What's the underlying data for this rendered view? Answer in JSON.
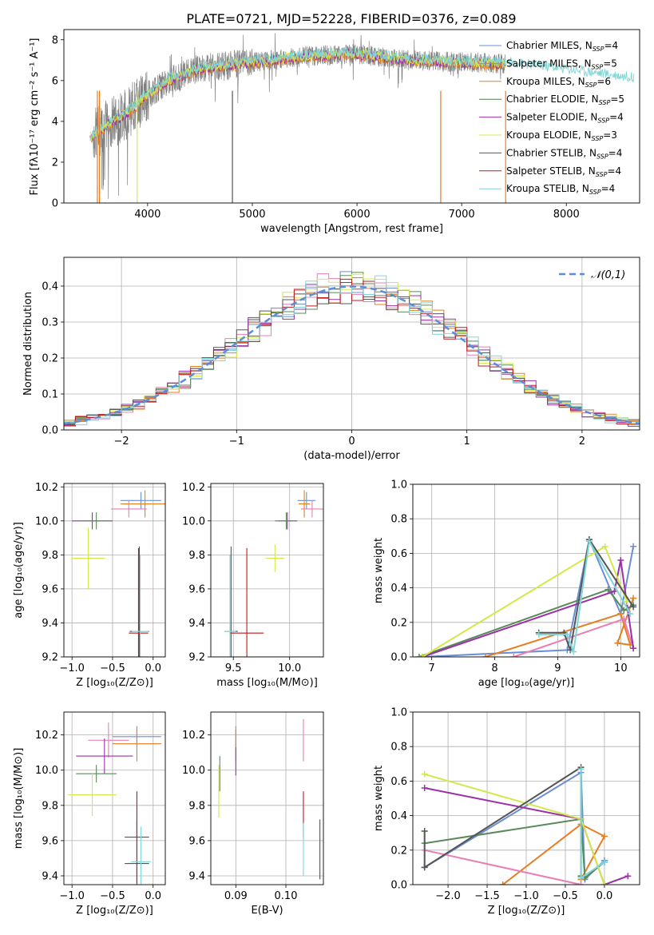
{
  "figure": {
    "title": "PLATE=0721, MJD=52228, FIBERID=0376, z=0.089"
  },
  "colors": [
    "#6a8fd8",
    "#e67e22",
    "#d97a1a",
    "#5a8a5a",
    "#9b30a8",
    "#d4e84a",
    "#555555",
    "#c0191c",
    "#7fd6d6",
    "#e87fb4"
  ],
  "legend_entries": [
    {
      "label": "Chabrier MILES, N",
      "sub": "SSP",
      "tail": "=4",
      "color": "#6a8fd8"
    },
    {
      "label": "Salpeter MILES, N",
      "sub": "SSP",
      "tail": "=5",
      "color": "#e67e22"
    },
    {
      "label": "Kroupa MILES, N",
      "sub": "SSP",
      "tail": "=6",
      "color": "#e87f2a"
    },
    {
      "label": "Chabrier ELODIE, N",
      "sub": "SSP",
      "tail": "=5",
      "color": "#4f7f4f"
    },
    {
      "label": "Salpeter ELODIE, N",
      "sub": "SSP",
      "tail": "=4",
      "color": "#9b30a8"
    },
    {
      "label": "Kroupa ELODIE, N",
      "sub": "SSP",
      "tail": "=3",
      "color": "#d4e84a"
    },
    {
      "label": "Chabrier STELIB, N",
      "sub": "SSP",
      "tail": "=4",
      "color": "#555555"
    },
    {
      "label": "Salpeter STELIB, N",
      "sub": "SSP",
      "tail": "=4",
      "color": "#c0191c"
    },
    {
      "label": "Kroupa STELIB, N",
      "sub": "SSP",
      "tail": "=4",
      "color": "#7fd6d6"
    }
  ],
  "chart_data": [
    {
      "id": "spectrum",
      "type": "line",
      "xlabel": "wavelength [Angstrom, rest frame]",
      "ylabel_pre": "Flux [f",
      "ylabel_text": "Flux [fλ10⁻¹⁷ erg cm⁻² s⁻¹ A⁻¹]",
      "xlim": [
        3200,
        8700
      ],
      "ylim": [
        0,
        8.5
      ],
      "xticks": [
        4000,
        5000,
        6000,
        7000,
        8000
      ],
      "yticks": [
        0,
        2,
        4,
        6,
        8
      ],
      "continuum": {
        "x": [
          3450,
          3600,
          3800,
          4000,
          4200,
          4500,
          5000,
          5500,
          6000,
          6500,
          7000,
          7500,
          8000,
          8600
        ],
        "y": [
          3.2,
          3.8,
          4.4,
          5.3,
          6.0,
          6.6,
          6.9,
          7.2,
          7.3,
          7.0,
          6.9,
          6.8,
          6.5,
          6.1
        ]
      }
    },
    {
      "id": "residual_hist",
      "type": "bar",
      "xlabel": "(data-model)/error",
      "ylabel": "Normed distribution",
      "xlim": [
        -2.5,
        2.5
      ],
      "ylim": [
        0,
        0.48
      ],
      "xticks": [
        -2,
        -1,
        0,
        1,
        2
      ],
      "yticks": [
        0.0,
        0.1,
        0.2,
        0.3,
        0.4
      ],
      "legend": "𝒩(0,1)",
      "bin_width": 0.1
    },
    {
      "id": "age_vs_Z",
      "type": "scatter",
      "xlabel": "Z [log₁₀(Z/Z⊙)]",
      "ylabel": "age  [log₁₀(age/yr)]",
      "xlim": [
        -1.1,
        0.15
      ],
      "ylim": [
        9.2,
        10.22
      ],
      "xticks": [
        -1.0,
        -0.5,
        0.0
      ],
      "yticks": [
        9.2,
        9.4,
        9.6,
        9.8,
        10.0,
        10.2
      ],
      "points": [
        {
          "x": -0.15,
          "y": 10.12,
          "xerr": 0.25,
          "yerr": 0.05,
          "c": 0
        },
        {
          "x": -0.1,
          "y": 10.1,
          "xerr": 0.3,
          "yerr": 0.08,
          "c": 1
        },
        {
          "x": -0.3,
          "y": 10.07,
          "xerr": 0.22,
          "yerr": 0.05,
          "c": 9
        },
        {
          "x": -0.75,
          "y": 10.0,
          "xerr": 0.25,
          "yerr": 0.05,
          "c": 4
        },
        {
          "x": -0.7,
          "y": 10.0,
          "xerr": 0.18,
          "yerr": 0.05,
          "c": 3
        },
        {
          "x": -0.8,
          "y": 9.78,
          "xerr": 0.2,
          "yerr": 0.18,
          "c": 5
        },
        {
          "x": -0.17,
          "y": 9.35,
          "xerr": 0.12,
          "yerr": 0.5,
          "c": 6
        },
        {
          "x": -0.18,
          "y": 9.34,
          "xerr": 0.12,
          "yerr": 0.5,
          "c": 7
        },
        {
          "x": -0.16,
          "y": 9.35,
          "xerr": 0.1,
          "yerr": 0.45,
          "c": 8
        }
      ]
    },
    {
      "id": "age_vs_mass",
      "type": "scatter",
      "xlabel": "mass [log₁₀(M/M⊙)]",
      "ylabel": "",
      "xlim": [
        9.3,
        10.3
      ],
      "ylim": [
        9.2,
        10.22
      ],
      "xticks": [
        9.5,
        10.0
      ],
      "yticks": [
        9.2,
        9.4,
        9.6,
        9.8,
        10.0,
        10.2
      ],
      "points": [
        {
          "x": 10.15,
          "y": 10.12,
          "xerr": 0.08,
          "yerr": 0.05,
          "c": 0
        },
        {
          "x": 10.13,
          "y": 10.1,
          "xerr": 0.05,
          "yerr": 0.08,
          "c": 1
        },
        {
          "x": 10.2,
          "y": 10.07,
          "xerr": 0.1,
          "yerr": 0.05,
          "c": 9
        },
        {
          "x": 9.98,
          "y": 10.0,
          "xerr": 0.08,
          "yerr": 0.05,
          "c": 4
        },
        {
          "x": 9.97,
          "y": 10.0,
          "xerr": 0.1,
          "yerr": 0.05,
          "c": 3
        },
        {
          "x": 9.87,
          "y": 9.78,
          "xerr": 0.08,
          "yerr": 0.08,
          "c": 5
        },
        {
          "x": 9.48,
          "y": 9.35,
          "xerr": 0.06,
          "yerr": 0.5,
          "c": 6
        },
        {
          "x": 9.62,
          "y": 9.34,
          "xerr": 0.15,
          "yerr": 0.5,
          "c": 7
        },
        {
          "x": 9.47,
          "y": 9.35,
          "xerr": 0.05,
          "yerr": 0.45,
          "c": 8
        }
      ]
    },
    {
      "id": "weight_vs_age",
      "type": "line",
      "xlabel": "age  [log₁₀(age/yr)]",
      "ylabel": "mass weight",
      "xlim": [
        6.7,
        10.3
      ],
      "ylim": [
        0,
        1.0
      ],
      "xticks": [
        7,
        8,
        9,
        10
      ],
      "yticks": [
        0.0,
        0.2,
        0.4,
        0.6,
        0.8,
        1.0
      ],
      "series": [
        {
          "c": 0,
          "x": [
            6.85,
            9.15,
            9.5,
            10.0,
            10.2
          ],
          "y": [
            0.0,
            0.04,
            0.68,
            0.25,
            0.64
          ]
        },
        {
          "c": 1,
          "x": [
            7.85,
            10.0,
            10.15,
            9.95,
            10.2
          ],
          "y": [
            0.0,
            0.25,
            0.07,
            0.08,
            0.34
          ]
        },
        {
          "c": 9,
          "x": [
            8.3,
            10.05,
            10.2
          ],
          "y": [
            0.0,
            0.22,
            0.05
          ]
        },
        {
          "c": 3,
          "x": [
            6.8,
            9.8,
            10.05,
            10.2
          ],
          "y": [
            0.0,
            0.39,
            0.27,
            0.3
          ]
        },
        {
          "c": 4,
          "x": [
            6.85,
            9.9,
            10.0,
            10.2
          ],
          "y": [
            0.0,
            0.38,
            0.56,
            0.05
          ]
        },
        {
          "c": 5,
          "x": [
            6.85,
            9.75,
            10.1
          ],
          "y": [
            0.0,
            0.64,
            0.32
          ]
        },
        {
          "c": 6,
          "x": [
            8.7,
            9.1,
            9.2,
            9.5,
            10.2
          ],
          "y": [
            0.14,
            0.14,
            0.04,
            0.68,
            0.29
          ]
        },
        {
          "c": 8,
          "x": [
            8.7,
            9.15,
            9.25,
            9.5,
            10.15
          ],
          "y": [
            0.13,
            0.13,
            0.03,
            0.67,
            0.25
          ]
        }
      ]
    },
    {
      "id": "mass_vs_Z",
      "type": "scatter",
      "xlabel": "Z [log₁₀(Z/Z⊙)]",
      "ylabel": "mass [log₁₀(M/M⊙)]",
      "xlim": [
        -1.1,
        0.15
      ],
      "ylim": [
        9.35,
        10.33
      ],
      "xticks": [
        -1.0,
        -0.5,
        0.0
      ],
      "yticks": [
        9.4,
        9.6,
        9.8,
        10.0,
        10.2
      ],
      "points": [
        {
          "x": -0.2,
          "y": 10.19,
          "xerr": 0.3,
          "yerr": 0.05,
          "c": 0
        },
        {
          "x": -0.2,
          "y": 10.15,
          "xerr": 0.3,
          "yerr": 0.1,
          "c": 1
        },
        {
          "x": -0.55,
          "y": 10.17,
          "xerr": 0.25,
          "yerr": 0.1,
          "c": 9
        },
        {
          "x": -0.6,
          "y": 10.08,
          "xerr": 0.35,
          "yerr": 0.1,
          "c": 4
        },
        {
          "x": -0.7,
          "y": 9.98,
          "xerr": 0.25,
          "yerr": 0.05,
          "c": 3
        },
        {
          "x": -0.75,
          "y": 9.86,
          "xerr": 0.3,
          "yerr": 0.12,
          "c": 5
        },
        {
          "x": -0.2,
          "y": 9.47,
          "xerr": 0.15,
          "yerr": 0.25,
          "c": 6
        },
        {
          "x": -0.2,
          "y": 9.62,
          "xerr": 0.15,
          "yerr": 0.26,
          "c": 7
        },
        {
          "x": -0.15,
          "y": 9.48,
          "xerr": 0.12,
          "yerr": 0.2,
          "c": 8
        }
      ]
    },
    {
      "id": "mass_vs_ebv",
      "type": "scatter",
      "xlabel": "E(B-V)",
      "ylabel": "",
      "xlim": [
        0.085,
        0.1075
      ],
      "ylim": [
        9.35,
        10.33
      ],
      "xticks": [
        0.09,
        0.1
      ],
      "yticks": [
        9.4,
        9.6,
        9.8,
        10.0,
        10.2
      ],
      "points": [
        {
          "x": 0.09,
          "y": 10.18,
          "xerr": 0,
          "yerr": 0.05,
          "c": 0
        },
        {
          "x": 0.09,
          "y": 10.15,
          "xerr": 0,
          "yerr": 0.1,
          "c": 1
        },
        {
          "x": 0.1035,
          "y": 10.17,
          "xerr": 0,
          "yerr": 0.12,
          "c": 9
        },
        {
          "x": 0.09,
          "y": 10.05,
          "xerr": 0,
          "yerr": 0.08,
          "c": 4
        },
        {
          "x": 0.0868,
          "y": 9.98,
          "xerr": 0,
          "yerr": 0.1,
          "c": 3
        },
        {
          "x": 0.0866,
          "y": 9.88,
          "xerr": 0,
          "yerr": 0.15,
          "c": 5
        },
        {
          "x": 0.1068,
          "y": 9.55,
          "xerr": 0,
          "yerr": 0.17,
          "c": 6
        },
        {
          "x": 0.1035,
          "y": 9.75,
          "xerr": 0,
          "yerr": 0.13,
          "c": 7
        },
        {
          "x": 0.1035,
          "y": 9.55,
          "xerr": 0,
          "yerr": 0.15,
          "c": 8
        }
      ]
    },
    {
      "id": "weight_vs_Z",
      "type": "line",
      "xlabel": "Z [log₁₀(Z/Z⊙)]",
      "ylabel": "mass weight",
      "xlim": [
        -2.45,
        0.45
      ],
      "ylim": [
        0,
        1.0
      ],
      "xticks": [
        -2.0,
        -1.5,
        -1.0,
        -0.5,
        0.0
      ],
      "yticks": [
        0.0,
        0.2,
        0.4,
        0.6,
        0.8,
        1.0
      ],
      "series": [
        {
          "c": 0,
          "x": [
            -2.3,
            -0.3,
            -0.25,
            0.0
          ],
          "y": [
            0.1,
            0.65,
            0.03,
            0.14
          ]
        },
        {
          "c": 1,
          "x": [
            -1.3,
            -0.3,
            0.0,
            -0.3
          ],
          "y": [
            0.0,
            0.35,
            0.28,
            0.03
          ]
        },
        {
          "c": 9,
          "x": [
            -2.3,
            -0.3
          ],
          "y": [
            0.2,
            0.0
          ]
        },
        {
          "c": 3,
          "x": [
            -2.3,
            -0.3,
            -0.25,
            0.0
          ],
          "y": [
            0.24,
            0.38,
            0.04,
            0.13
          ]
        },
        {
          "c": 4,
          "x": [
            -2.3,
            -0.3,
            0.0,
            0.3
          ],
          "y": [
            0.56,
            0.38,
            0.0,
            0.05
          ]
        },
        {
          "c": 5,
          "x": [
            -2.3,
            -0.3,
            0.0
          ],
          "y": [
            0.64,
            0.38,
            0.0
          ]
        },
        {
          "c": 6,
          "x": [
            -2.3,
            -2.3,
            -0.3,
            -0.3
          ],
          "y": [
            0.31,
            0.1,
            0.68,
            0.05
          ]
        },
        {
          "c": 8,
          "x": [
            -0.3,
            -0.3,
            0.0
          ],
          "y": [
            0.67,
            0.04,
            0.13
          ]
        }
      ]
    }
  ]
}
